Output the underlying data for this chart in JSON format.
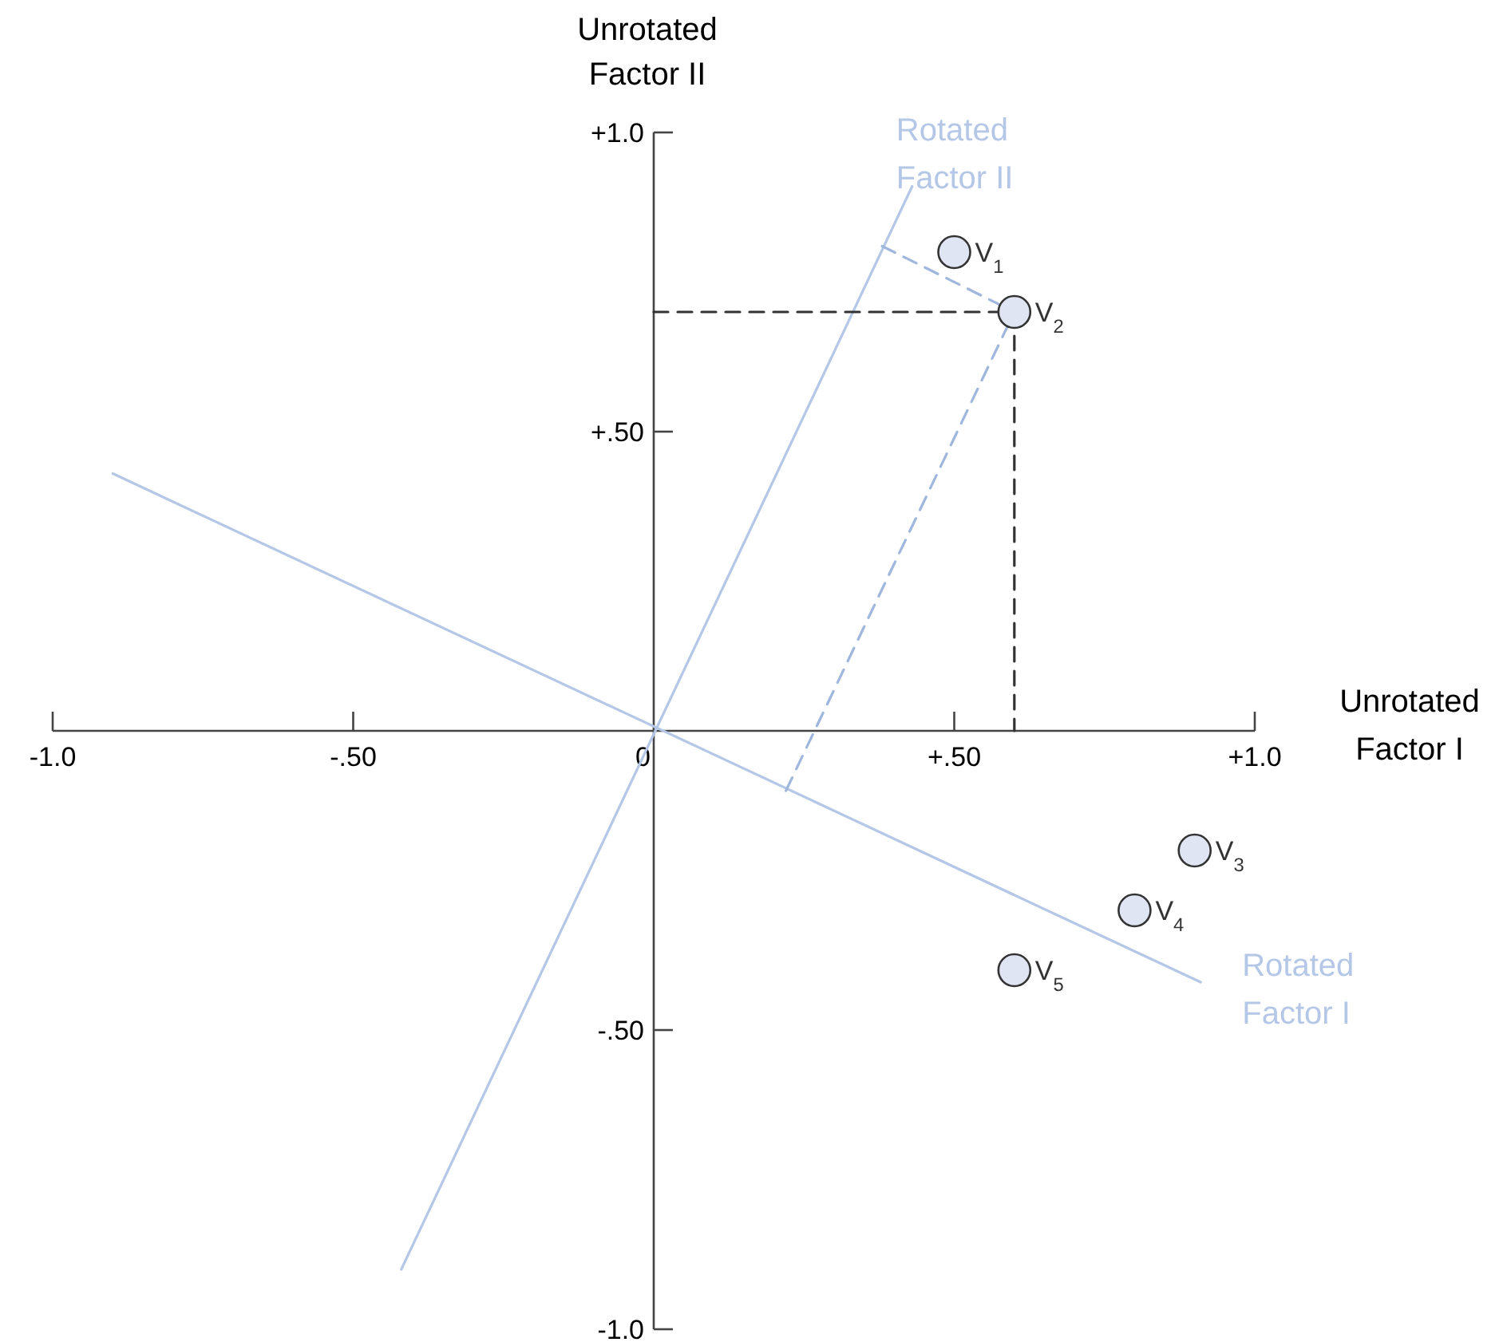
{
  "chart_data": {
    "type": "scatter",
    "xlabel": "Unrotated Factor I",
    "ylabel": "Unrotated Factor II",
    "xlim": [
      -1,
      1
    ],
    "ylim": [
      -1,
      1
    ],
    "xticks": [
      {
        "value": -1,
        "label": "-1.0"
      },
      {
        "value": -0.5,
        "label": "-.50"
      },
      {
        "value": 0,
        "label": "0"
      },
      {
        "value": 0.5,
        "label": "+.50"
      },
      {
        "value": 1,
        "label": "+1.0"
      }
    ],
    "yticks": [
      {
        "value": -1,
        "label": "-1.0"
      },
      {
        "value": -0.5,
        "label": "-.50"
      },
      {
        "value": 0.5,
        "label": "+.50"
      },
      {
        "value": 1,
        "label": "+1.0"
      }
    ],
    "legend": false,
    "grid": false,
    "series": [
      {
        "name": "Rotated Factor I",
        "type": "line",
        "color": "#b4c7e7",
        "marker": "none",
        "line_style": "solid",
        "x": [
          -0.9,
          0.91
        ],
        "values": [
          0.43,
          -0.42
        ]
      },
      {
        "name": "Rotated Factor II",
        "type": "line",
        "color": "#b4c7e7",
        "marker": "none",
        "line_style": "solid",
        "x": [
          -0.42,
          0.43
        ],
        "values": [
          -0.9,
          0.91
        ]
      },
      {
        "type": "line",
        "color": "#333333",
        "marker": "none",
        "line_style": "dashed",
        "x": [
          0,
          0.6
        ],
        "values": [
          0.7,
          0.7
        ]
      },
      {
        "type": "line",
        "color": "#333333",
        "marker": "none",
        "line_style": "dashed",
        "x": [
          0.6,
          0.6
        ],
        "values": [
          0.7,
          0
        ]
      },
      {
        "type": "line",
        "color": "#9fb6dd",
        "marker": "none",
        "line_style": "dashed",
        "x": [
          0.38,
          0.6
        ],
        "values": [
          0.81,
          0.7
        ]
      },
      {
        "type": "line",
        "color": "#9fb6dd",
        "marker": "none",
        "line_style": "dashed",
        "x": [
          0.22,
          0.6
        ],
        "values": [
          -0.1,
          0.7
        ]
      },
      {
        "color": "#dfe5f2",
        "marker": "circle",
        "x": [
          0.5,
          0.6,
          0.9,
          0.8,
          0.6
        ],
        "values": [
          0.8,
          0.7,
          -0.2,
          -0.3,
          -0.4
        ]
      }
    ],
    "annotations": [
      {
        "text": "V$_{1}$",
        "x": 0.5,
        "y": 0.8
      },
      {
        "text": "V$_{2}$",
        "x": 0.6,
        "y": 0.7
      },
      {
        "text": "V$_{3}$",
        "x": 0.9,
        "y": -0.2
      },
      {
        "text": "V$_{4}$",
        "x": 0.8,
        "y": -0.3
      },
      {
        "text": "V$_{5}$",
        "x": 0.6,
        "y": -0.4
      }
    ]
  }
}
